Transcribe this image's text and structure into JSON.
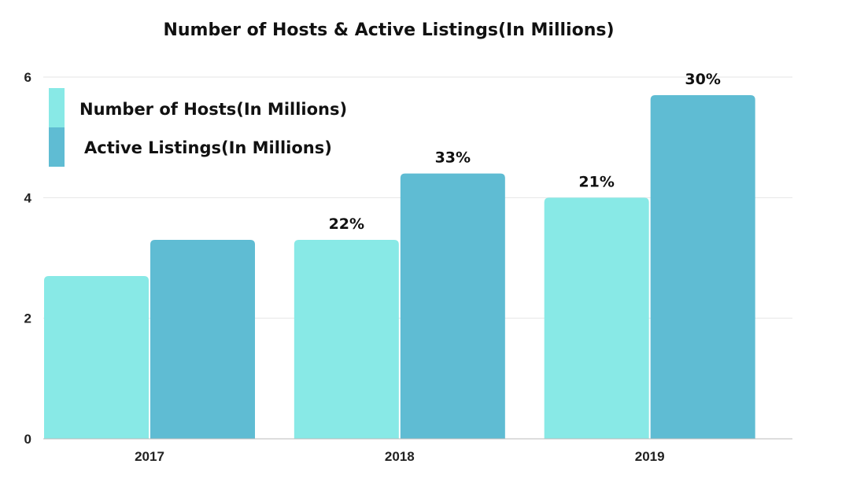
{
  "chart_data": {
    "type": "bar",
    "title": "Number of Hosts & Active Listings(In Millions)",
    "xlabel": "",
    "ylabel": "",
    "categories": [
      "2017",
      "2018",
      "2019"
    ],
    "ylim": [
      0,
      6
    ],
    "yticks": [
      "0",
      "2",
      "4",
      "6"
    ],
    "grid": true,
    "legend_position": "top-left",
    "series": [
      {
        "name": "Number of Hosts(In Millions)",
        "color": "#88e9e6",
        "values": [
          2.7,
          3.3,
          4.0
        ],
        "labels": [
          "",
          "22%",
          "21%"
        ]
      },
      {
        "name": "Active Listings(In Millions)",
        "color": "#5fbcd3",
        "values": [
          3.3,
          4.4,
          5.7
        ],
        "labels": [
          "",
          "33%",
          "30%"
        ]
      }
    ]
  }
}
